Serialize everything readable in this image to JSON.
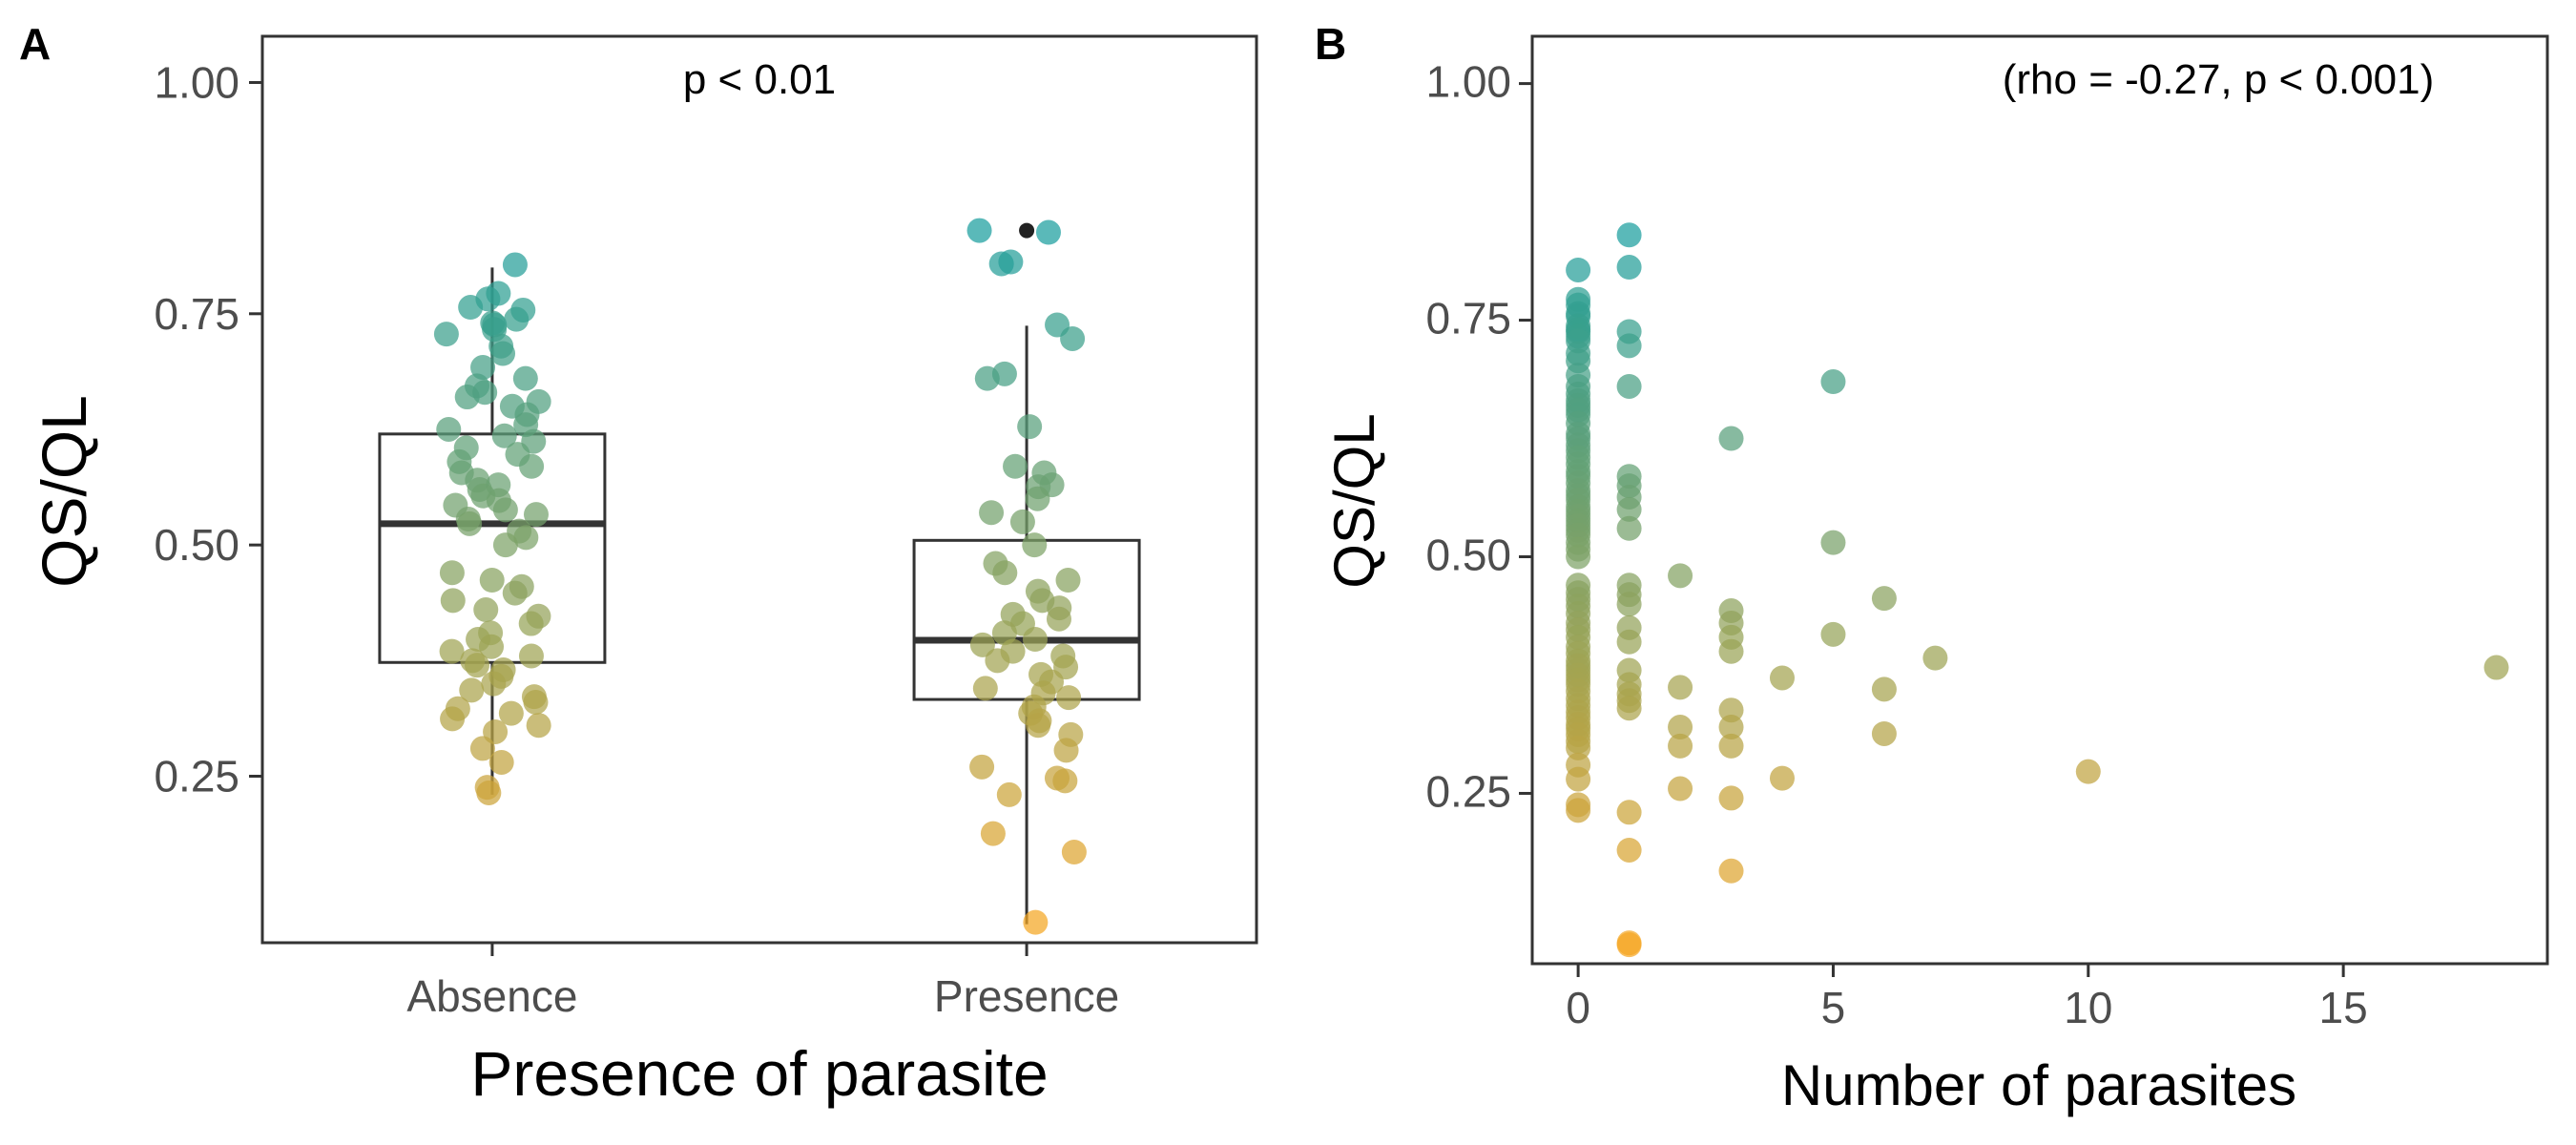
{
  "figure": {
    "gradient_colors": {
      "low": "#F5A623",
      "high": "#1A9E9E"
    },
    "point_opacity": 0.72
  },
  "chart_data": [
    {
      "panel": "A",
      "type": "box",
      "xlabel": "Presence of parasite",
      "ylabel": "QS/QL",
      "categories": [
        "Absence",
        "Presence"
      ],
      "ylim": [
        0.07,
        1.05
      ],
      "yticks": [
        0.25,
        0.5,
        0.75,
        1.0
      ],
      "ytick_labels": [
        "0.25",
        "0.50",
        "0.75",
        "1.00"
      ],
      "annotation": "p < 0.01",
      "grid": false,
      "boxes": [
        {
          "category": "Absence",
          "lower_whisker": 0.23,
          "q1": 0.373,
          "median": 0.523,
          "q3": 0.62,
          "upper_whisker": 0.8
        },
        {
          "category": "Presence",
          "lower_whisker": 0.09,
          "q1": 0.333,
          "median": 0.397,
          "q3": 0.505,
          "upper_whisker": 0.737,
          "outliers": [
            0.84
          ]
        }
      ],
      "points": [
        {
          "category": "Absence",
          "values": [
            0.803,
            0.772,
            0.766,
            0.757,
            0.754,
            0.744,
            0.74,
            0.738,
            0.733,
            0.728,
            0.715,
            0.707,
            0.692,
            0.68,
            0.672,
            0.665,
            0.66,
            0.655,
            0.65,
            0.641,
            0.63,
            0.625,
            0.618,
            0.612,
            0.605,
            0.598,
            0.59,
            0.585,
            0.578,
            0.57,
            0.565,
            0.56,
            0.553,
            0.548,
            0.543,
            0.538,
            0.533,
            0.528,
            0.523,
            0.515,
            0.508,
            0.5,
            0.47,
            0.462,
            0.455,
            0.448,
            0.44,
            0.43,
            0.423,
            0.415,
            0.405,
            0.398,
            0.39,
            0.385,
            0.38,
            0.375,
            0.37,
            0.365,
            0.358,
            0.35,
            0.343,
            0.336,
            0.33,
            0.323,
            0.318,
            0.312,
            0.305,
            0.298,
            0.28,
            0.265,
            0.238,
            0.232
          ]
        },
        {
          "category": "Presence",
          "values": [
            0.84,
            0.838,
            0.806,
            0.804,
            0.738,
            0.723,
            0.685,
            0.68,
            0.628,
            0.585,
            0.578,
            0.565,
            0.563,
            0.55,
            0.535,
            0.525,
            0.5,
            0.48,
            0.47,
            0.462,
            0.45,
            0.44,
            0.432,
            0.425,
            0.42,
            0.415,
            0.405,
            0.398,
            0.392,
            0.385,
            0.38,
            0.375,
            0.368,
            0.36,
            0.352,
            0.345,
            0.34,
            0.335,
            0.325,
            0.318,
            0.31,
            0.305,
            0.295,
            0.278,
            0.26,
            0.248,
            0.245,
            0.23,
            0.188,
            0.168,
            0.092
          ]
        }
      ]
    },
    {
      "panel": "B",
      "type": "scatter",
      "xlabel": "Number of parasites",
      "ylabel": "QS/QL",
      "xlim": [
        -0.9,
        19.0
      ],
      "ylim": [
        0.07,
        1.05
      ],
      "xticks": [
        0,
        5,
        10,
        15
      ],
      "xtick_labels": [
        "0",
        "5",
        "10",
        "15"
      ],
      "yticks": [
        0.25,
        0.5,
        0.75,
        1.0
      ],
      "ytick_labels": [
        "0.25",
        "0.50",
        "0.75",
        "1.00"
      ],
      "annotation": "(rho = -0.27, p < 0.001)",
      "grid": false,
      "points": {
        "x": [
          0,
          0,
          0,
          0,
          0,
          0,
          0,
          0,
          0,
          0,
          0,
          0,
          0,
          0,
          0,
          0,
          0,
          0,
          0,
          0,
          0,
          0,
          0,
          0,
          0,
          0,
          0,
          0,
          0,
          0,
          0,
          0,
          0,
          0,
          0,
          0,
          0,
          0,
          0,
          0,
          0,
          0,
          0,
          0,
          0,
          0,
          0,
          0,
          0,
          0,
          0,
          0,
          0,
          0,
          0,
          0,
          0,
          0,
          0,
          0,
          0,
          0,
          0,
          0,
          0,
          0,
          0,
          0,
          0,
          0,
          0,
          0,
          1,
          1,
          1,
          1,
          1,
          1,
          1,
          1,
          1,
          1,
          1,
          1,
          1,
          1,
          1,
          1,
          1,
          1,
          1,
          1,
          1,
          1,
          1,
          1,
          2,
          2,
          2,
          2,
          2,
          3,
          3,
          3,
          3,
          3,
          3,
          3,
          3,
          3,
          3,
          4,
          4,
          5,
          5,
          5,
          6,
          6,
          6,
          7,
          10,
          18
        ],
        "y": [
          0.803,
          0.772,
          0.766,
          0.757,
          0.754,
          0.744,
          0.74,
          0.738,
          0.733,
          0.728,
          0.715,
          0.707,
          0.692,
          0.68,
          0.672,
          0.665,
          0.66,
          0.655,
          0.65,
          0.641,
          0.63,
          0.625,
          0.618,
          0.612,
          0.605,
          0.598,
          0.59,
          0.585,
          0.578,
          0.57,
          0.565,
          0.56,
          0.553,
          0.548,
          0.543,
          0.538,
          0.533,
          0.528,
          0.523,
          0.515,
          0.508,
          0.5,
          0.47,
          0.462,
          0.455,
          0.448,
          0.44,
          0.43,
          0.423,
          0.415,
          0.405,
          0.398,
          0.39,
          0.385,
          0.38,
          0.375,
          0.37,
          0.365,
          0.358,
          0.35,
          0.343,
          0.336,
          0.33,
          0.323,
          0.318,
          0.312,
          0.305,
          0.298,
          0.28,
          0.265,
          0.238,
          0.232,
          0.84,
          0.806,
          0.738,
          0.723,
          0.68,
          0.585,
          0.575,
          0.563,
          0.55,
          0.53,
          0.47,
          0.46,
          0.45,
          0.425,
          0.41,
          0.38,
          0.365,
          0.355,
          0.348,
          0.34,
          0.23,
          0.19,
          0.092,
          0.09,
          0.48,
          0.362,
          0.32,
          0.3,
          0.255,
          0.625,
          0.443,
          0.43,
          0.415,
          0.4,
          0.338,
          0.32,
          0.3,
          0.245,
          0.168,
          0.372,
          0.266,
          0.685,
          0.515,
          0.418,
          0.456,
          0.36,
          0.313,
          0.393,
          0.273,
          0.383
        ]
      }
    }
  ]
}
